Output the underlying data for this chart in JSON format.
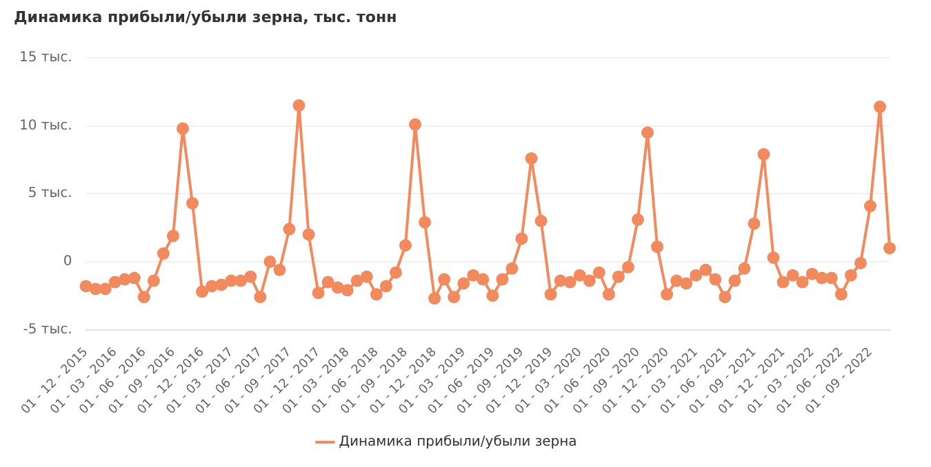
{
  "chart_data": {
    "type": "line",
    "title": "Динамика прибыли/убыли зерна, тыс. тонн",
    "categories": [
      "01 - 12 - 2015",
      null,
      null,
      "01 - 03 - 2016",
      null,
      null,
      "01 - 06 - 2016",
      null,
      null,
      "01 - 09 - 2016",
      null,
      null,
      "01 - 12 - 2016",
      null,
      null,
      "01 - 03 - 2017",
      null,
      null,
      "01 - 06 - 2017",
      null,
      null,
      "01 - 09 - 2017",
      null,
      null,
      "01 - 12 - 2017",
      null,
      null,
      "01 - 03 - 2018",
      null,
      null,
      "01 - 06 - 2018",
      null,
      null,
      "01 - 09 - 2018",
      null,
      null,
      "01 - 12 - 2018",
      null,
      null,
      "01 - 03 - 2019",
      null,
      null,
      "01 - 06 - 2019",
      null,
      null,
      "01 - 09 - 2019",
      null,
      null,
      "01 - 12 - 2019",
      null,
      null,
      "01 - 03 - 2020",
      null,
      null,
      "01 - 06 - 2020",
      null,
      null,
      "01 - 09 - 2020",
      null,
      null,
      "01 - 12 - 2020",
      null,
      null,
      "01 - 03 - 2021",
      null,
      null,
      "01 - 06 - 2021",
      null,
      null,
      "01 - 09 - 2021",
      null,
      null,
      "01 - 12 - 2021",
      null,
      null,
      "01 - 03 - 2022",
      null,
      null,
      "01 - 06 - 2022",
      null,
      null,
      "01 - 09 - 2022",
      null,
      null
    ],
    "series": [
      {
        "name": "Динамика прибыли/убыли зерна",
        "color": "#f28a5d",
        "values": [
          -1.8,
          -2.0,
          -2.0,
          -1.5,
          -1.3,
          -1.2,
          -2.6,
          -1.4,
          0.6,
          1.9,
          9.8,
          4.3,
          -2.2,
          -1.8,
          -1.7,
          -1.4,
          -1.4,
          -1.1,
          -2.6,
          0.0,
          -0.6,
          2.4,
          11.5,
          2.0,
          -2.3,
          -1.5,
          -1.9,
          -2.1,
          -1.4,
          -1.1,
          -2.4,
          -1.8,
          -0.8,
          1.2,
          10.1,
          2.9,
          -2.7,
          -1.3,
          -2.6,
          -1.6,
          -1.0,
          -1.3,
          -2.5,
          -1.3,
          -0.5,
          1.7,
          7.6,
          3.0,
          -2.4,
          -1.4,
          -1.5,
          -1.0,
          -1.4,
          -0.8,
          -2.4,
          -1.1,
          -0.4,
          3.1,
          9.5,
          1.1,
          -2.4,
          -1.4,
          -1.6,
          -1.0,
          -0.6,
          -1.3,
          -2.6,
          -1.4,
          -0.5,
          2.8,
          7.9,
          0.3,
          -1.5,
          -1.0,
          -1.5,
          -0.9,
          -1.2,
          -1.2,
          -2.4,
          -1.0,
          -0.1,
          4.1,
          11.4,
          1.0
        ]
      }
    ],
    "ylim": [
      -5,
      15
    ],
    "yticks": [
      {
        "value": -5,
        "label": "-5 тыс."
      },
      0,
      {
        "value": 5,
        "label": "5 тыс."
      },
      {
        "value": 10,
        "label": "10 тыс."
      },
      {
        "value": 15,
        "label": "15 тыс."
      }
    ],
    "grid": "y",
    "legend": "bottom",
    "marker": "circle",
    "line_style": "solid"
  }
}
